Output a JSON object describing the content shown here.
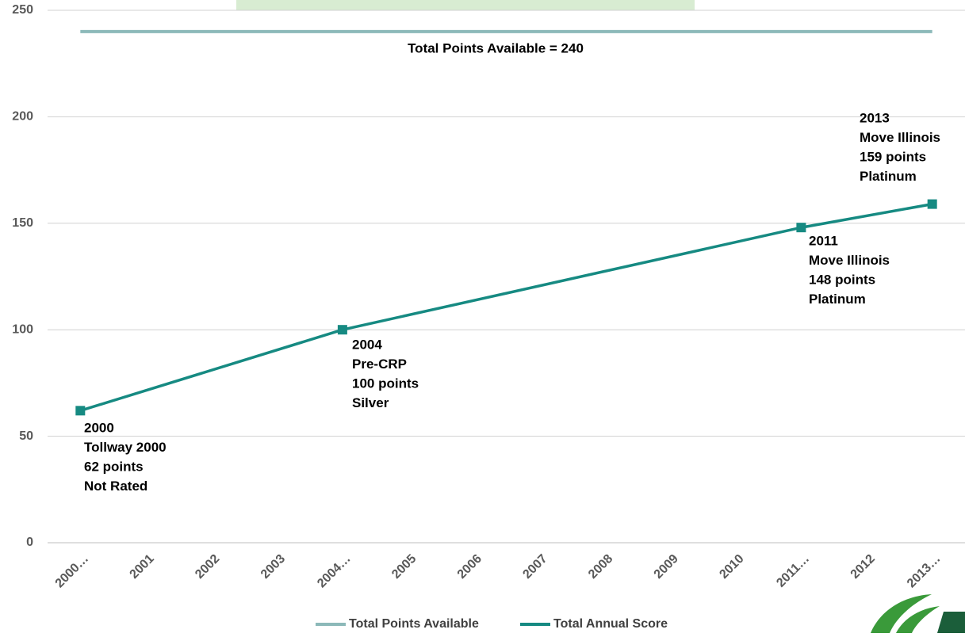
{
  "chart_data": {
    "type": "line",
    "categories": [
      "2000…",
      "2001",
      "2002",
      "2003",
      "2004…",
      "2005",
      "2006",
      "2007",
      "2008",
      "2009",
      "2010",
      "2011…",
      "2012",
      "2013…"
    ],
    "series": [
      {
        "name": "Total Points Available",
        "color": "#8cb9b9",
        "values": [
          240,
          240,
          240,
          240,
          240,
          240,
          240,
          240,
          240,
          240,
          240,
          240,
          240,
          240
        ]
      },
      {
        "name": "Total Annual Score",
        "color": "#168a82",
        "values": [
          62,
          null,
          null,
          null,
          100,
          null,
          null,
          null,
          null,
          null,
          null,
          148,
          null,
          159
        ]
      }
    ],
    "ylim": [
      0,
      250
    ],
    "yticks": [
      0,
      50,
      100,
      150,
      200,
      250
    ],
    "grid": true,
    "legend": "bottom",
    "annotations": [
      {
        "text": "Total Points Available  = 240"
      },
      {
        "lines": [
          "2000",
          "Tollway 2000",
          "62 points",
          "Not Rated"
        ]
      },
      {
        "lines": [
          "2004",
          "Pre-CRP",
          "100 points",
          "Silver"
        ]
      },
      {
        "lines": [
          "2011",
          "Move Illinois",
          "148 points",
          "Platinum"
        ]
      },
      {
        "lines": [
          "2013",
          "Move Illinois",
          "159 points",
          "Platinum"
        ]
      }
    ]
  }
}
